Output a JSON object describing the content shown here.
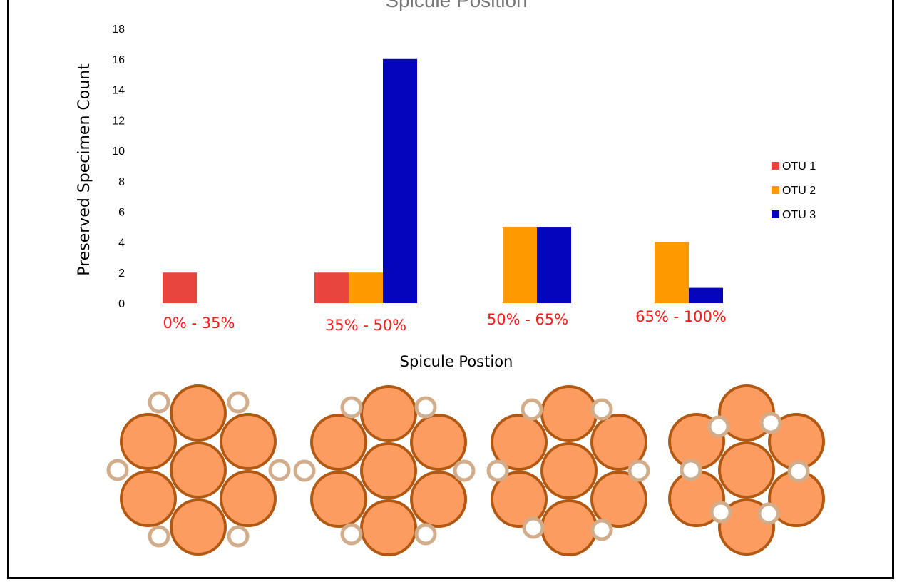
{
  "chart_data": {
    "type": "bar",
    "title": "Spicule Position",
    "xlabel": "Spicule Postion",
    "ylabel": "Preserved  Specimen Count",
    "ylim": [
      0,
      18
    ],
    "yticks": [
      0,
      2,
      4,
      6,
      8,
      10,
      12,
      14,
      16,
      18
    ],
    "grid": false,
    "legend_position": "right",
    "categories": [
      "0% - 35%",
      "35% - 50%",
      "50% - 65%",
      "65% - 100%"
    ],
    "category_label_color": "#ff1a1a",
    "series": [
      {
        "name": "OTU 1",
        "color": "#e8453c",
        "values": [
          2,
          2,
          0,
          0
        ]
      },
      {
        "name": "OTU 2",
        "color": "#ff9900",
        "values": [
          0,
          2,
          5,
          4
        ]
      },
      {
        "name": "OTU 3",
        "color": "#0505bd",
        "values": [
          0,
          16,
          5,
          1
        ]
      }
    ]
  },
  "diagrams": {
    "large_circle_fill": "#fd9c61",
    "large_circle_stroke": "#b15912",
    "small_circle_stroke": "#d2ad8c",
    "small_circle_fill": "#ffffff"
  }
}
